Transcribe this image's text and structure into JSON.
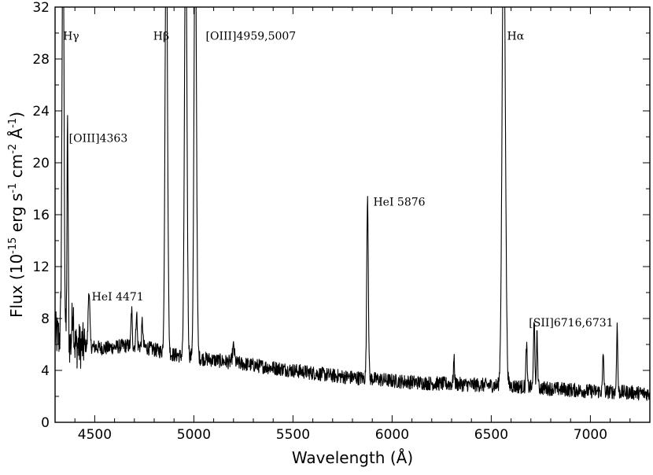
{
  "chart_data": {
    "type": "line",
    "xlabel": "Wavelength (Å)",
    "ylabel_parts": [
      "Flux (10",
      "-15",
      " erg s",
      "-1",
      " cm",
      "-2",
      " Å",
      "-1",
      ")"
    ],
    "xlim": [
      4300,
      7300
    ],
    "ylim": [
      0,
      32
    ],
    "x_ticks": [
      4500,
      5000,
      5500,
      6000,
      6500,
      7000
    ],
    "y_ticks": [
      0,
      4,
      8,
      12,
      16,
      20,
      24,
      28,
      32
    ],
    "x_minor_step": 100,
    "y_minor_step": 2,
    "grid": false,
    "line_color": "#000000",
    "continuum": [
      [
        4300,
        6.8
      ],
      [
        4350,
        6.2
      ],
      [
        4400,
        5.9
      ],
      [
        4450,
        5.9
      ],
      [
        4500,
        5.8
      ],
      [
        4550,
        5.7
      ],
      [
        4600,
        5.8
      ],
      [
        4650,
        5.9
      ],
      [
        4700,
        5.9
      ],
      [
        4750,
        5.8
      ],
      [
        4800,
        5.6
      ],
      [
        4850,
        5.4
      ],
      [
        4900,
        5.2
      ],
      [
        5000,
        5.0
      ],
      [
        5100,
        4.8
      ],
      [
        5200,
        4.6
      ],
      [
        5300,
        4.4
      ],
      [
        5400,
        4.2
      ],
      [
        5500,
        4.0
      ],
      [
        5600,
        3.8
      ],
      [
        5700,
        3.6
      ],
      [
        5800,
        3.45
      ],
      [
        5900,
        3.35
      ],
      [
        6000,
        3.2
      ],
      [
        6100,
        3.1
      ],
      [
        6200,
        3.0
      ],
      [
        6300,
        2.95
      ],
      [
        6400,
        2.9
      ],
      [
        6500,
        2.85
      ],
      [
        6600,
        2.8
      ],
      [
        6700,
        2.7
      ],
      [
        6800,
        2.6
      ],
      [
        6900,
        2.5
      ],
      [
        7000,
        2.4
      ],
      [
        7100,
        2.35
      ],
      [
        7200,
        2.3
      ],
      [
        7300,
        2.2
      ]
    ],
    "lines": [
      {
        "wavelength": 4340,
        "peak": 40,
        "width": 5
      },
      {
        "wavelength": 4363,
        "peak": 22.5,
        "width": 3
      },
      {
        "wavelength": 4390,
        "peak": 9,
        "width": 4
      },
      {
        "wavelength": 4471,
        "peak": 10.3,
        "width": 4
      },
      {
        "wavelength": 4686,
        "peak": 8.7,
        "width": 3
      },
      {
        "wavelength": 4711,
        "peak": 8.5,
        "width": 3
      },
      {
        "wavelength": 4740,
        "peak": 7.8,
        "width": 3
      },
      {
        "wavelength": 4861,
        "peak": 40,
        "width": 6
      },
      {
        "wavelength": 4959,
        "peak": 40,
        "width": 6
      },
      {
        "wavelength": 5007,
        "peak": 40,
        "width": 6
      },
      {
        "wavelength": 5200,
        "peak": 5.8,
        "width": 5
      },
      {
        "wavelength": 5876,
        "peak": 17.5,
        "width": 4
      },
      {
        "wavelength": 6312,
        "peak": 4.8,
        "width": 3
      },
      {
        "wavelength": 6563,
        "peak": 40,
        "width": 8
      },
      {
        "wavelength": 6678,
        "peak": 6.0,
        "width": 3
      },
      {
        "wavelength": 6716,
        "peak": 8.2,
        "width": 3
      },
      {
        "wavelength": 6731,
        "peak": 6.8,
        "width": 3
      },
      {
        "wavelength": 7065,
        "peak": 5.3,
        "width": 3
      },
      {
        "wavelength": 7135,
        "peak": 7.4,
        "width": 3
      }
    ],
    "annotations": [
      {
        "text": "Hγ",
        "x": 4340,
        "y": 29.5
      },
      {
        "text": "Hβ",
        "x": 4795,
        "y": 29.5
      },
      {
        "text": "[OIII]4959,5007",
        "x": 5060,
        "y": 29.5
      },
      {
        "text": "[OIII]4363",
        "x": 4370,
        "y": 21.6
      },
      {
        "text": "HeI 4471",
        "x": 4485,
        "y": 9.4
      },
      {
        "text": "HeI 5876",
        "x": 5905,
        "y": 16.7
      },
      {
        "text": "Hα",
        "x": 6580,
        "y": 29.5
      },
      {
        "text": "[SII]6716,6731",
        "x": 6690,
        "y": 7.4
      }
    ]
  }
}
